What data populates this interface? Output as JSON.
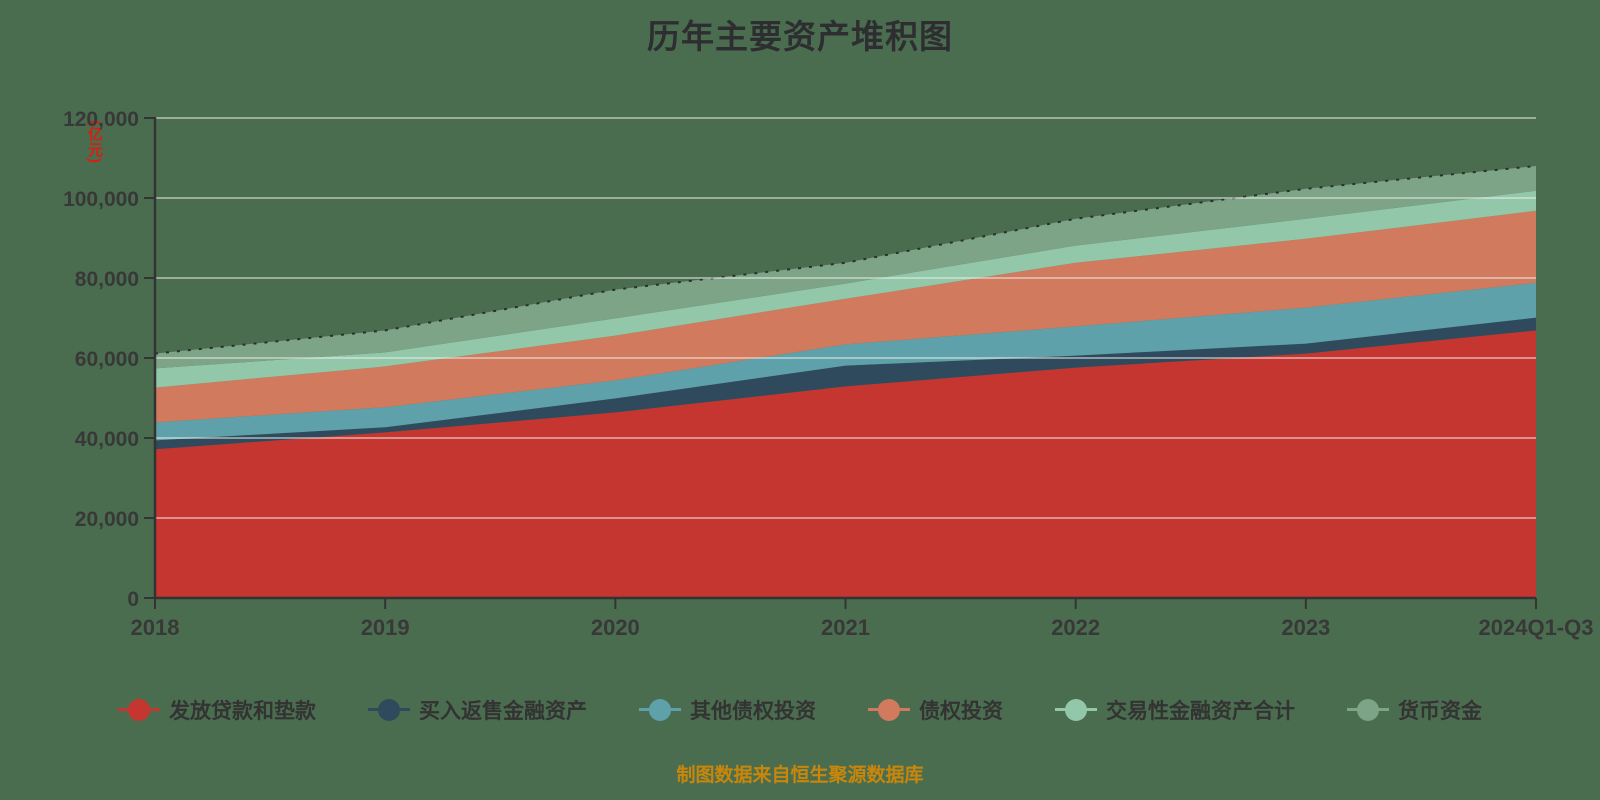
{
  "title": "历年主要资产堆积图",
  "y_unit": "(亿元)",
  "footer": "制图数据来自恒生聚源数据库",
  "colors": {
    "background": "#4b6d4f",
    "title": "#2e2e32",
    "axis": "#333333",
    "tick_label": "#383838",
    "grid": "rgba(236,240,236,0.5)",
    "unit_label": "#dd1c0f",
    "footer_text": "#c8870b",
    "legend_text": "#333333",
    "total_dash_line": "#2d2d2d"
  },
  "chart_data": {
    "type": "area",
    "stacked": true,
    "title": "历年主要资产堆积图",
    "unit": "亿元",
    "categories": [
      "2018",
      "2019",
      "2020",
      "2021",
      "2022",
      "2023",
      "2024Q1-Q3"
    ],
    "series": [
      {
        "name": "发放贷款和垫款",
        "color": "#c4362f",
        "values": [
          37200,
          41400,
          46400,
          52900,
          57600,
          61100,
          66900
        ]
      },
      {
        "name": "买入返售金融资产",
        "color": "#2f4a5d",
        "values": [
          2200,
          1300,
          3500,
          5200,
          3000,
          2500,
          3200
        ]
      },
      {
        "name": "其他债权投资",
        "color": "#5ea1aa",
        "values": [
          4500,
          5000,
          4500,
          5300,
          7300,
          9000,
          8700
        ]
      },
      {
        "name": "债权投资",
        "color": "#d17a5e",
        "values": [
          8700,
          10200,
          11200,
          11400,
          15900,
          17200,
          18000
        ]
      },
      {
        "name": "交易性金融资产合计",
        "color": "#92c8a9",
        "values": [
          4800,
          3500,
          4300,
          3800,
          4300,
          5000,
          5000
        ]
      },
      {
        "name": "货币资金",
        "color": "#7da487",
        "values": [
          3700,
          5500,
          7200,
          5200,
          6700,
          7500,
          6200
        ]
      }
    ],
    "totals": [
      61100,
      66900,
      77100,
      83800,
      94800,
      102300,
      108000
    ],
    "ylim": [
      0,
      120000
    ],
    "ytick_step": 20000,
    "ytick_labels": [
      "0",
      "20,000",
      "40,000",
      "60,000",
      "80,000",
      "100,000",
      "120,000"
    ],
    "grid": true,
    "legend_position": "bottom"
  }
}
